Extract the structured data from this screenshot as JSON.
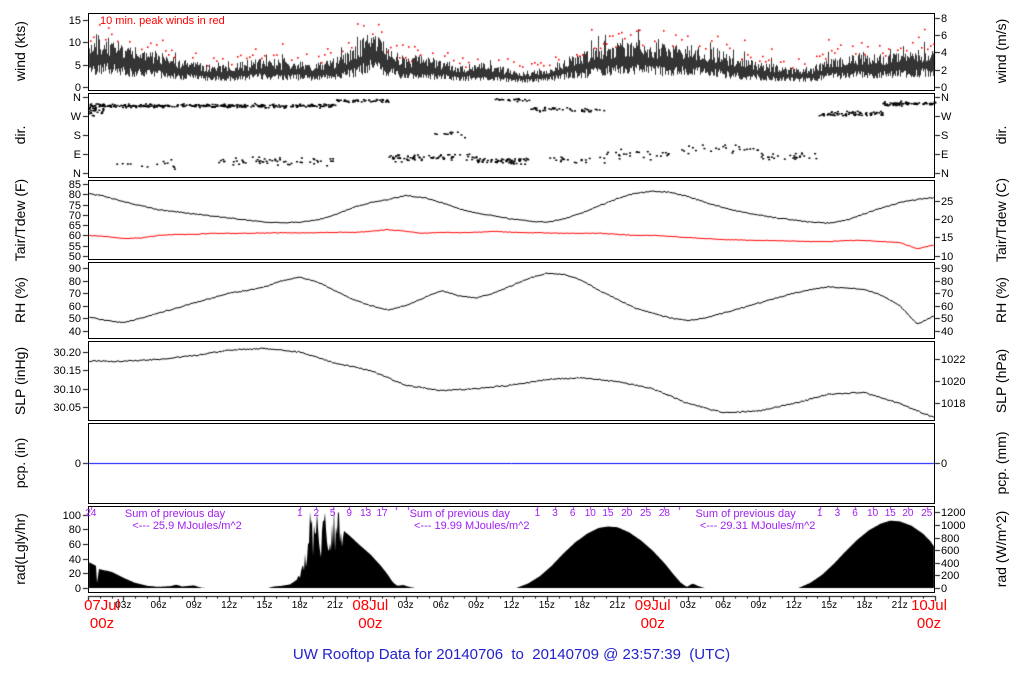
{
  "title": {
    "text": "UW Rooftop Data for 20140706  to  20140709 @ 23:57:39  (UTC)"
  },
  "colors": {
    "series_black": "#000000",
    "series_red": "#ff0000",
    "precip_blue": "#0000ff",
    "annotation_purple": "#a020f0",
    "date_red": "#ff0000",
    "title_blue": "#2222cc"
  },
  "time_axis": {
    "hours_span": 72,
    "major_ticks": [
      {
        "hour": 0,
        "date": "07Jul",
        "z": "00z"
      },
      {
        "hour": 24,
        "date": "08Jul",
        "z": "00z"
      },
      {
        "hour": 48,
        "date": "09Jul",
        "z": "00z"
      },
      {
        "hour": 72,
        "date": "10Jul",
        "z": "00z"
      }
    ],
    "minor_labels": [
      "03z",
      "06z",
      "09z",
      "12z",
      "15z",
      "18z",
      "21z"
    ]
  },
  "chart_data": [
    {
      "id": "wind",
      "type": "line",
      "ylabel_left": "wind (kts)",
      "ylabel_right": "wind (m/s)",
      "ylim": [
        -0.7,
        16.6
      ],
      "yticks_left": {
        "values": [
          0,
          5,
          10,
          15
        ],
        "labels": [
          "0",
          "5",
          "10",
          "15"
        ]
      },
      "yticks_right": {
        "labels": [
          "0",
          "2",
          "4",
          "6",
          "8"
        ],
        "left_values": [
          0,
          3.888,
          7.776,
          11.663,
          15.551
        ]
      },
      "annotation": "10 min. peak winds in red",
      "series": [
        {
          "name": "wind average (kts)",
          "color": "#000000",
          "x_step_hours": 1.5,
          "values": [
            7.5,
            8,
            6.5,
            6,
            5.5,
            4.5,
            4,
            3.5,
            3.5,
            4,
            4.5,
            4.2,
            4,
            3.8,
            4.5,
            6,
            9,
            6.5,
            4.5,
            5,
            4.2,
            3.2,
            4,
            3.5,
            2.8,
            2.5,
            3,
            4.5,
            5.5,
            6.5,
            7,
            7.5,
            7,
            6.5,
            6.8,
            6.2,
            5.5,
            4.5,
            4,
            3.5,
            3,
            3.2,
            4.5,
            5,
            5.5,
            5,
            5.5,
            6,
            6
          ]
        },
        {
          "name": "10 min. peak winds (kts)",
          "color": "#ff0000",
          "style": "dots-above"
        }
      ]
    },
    {
      "id": "dir",
      "type": "scatter",
      "ylabel_left": "dir.",
      "ylabel_right": "dir.",
      "ylim": [
        -20,
        380
      ],
      "yticks_left": {
        "values": [
          360,
          270,
          180,
          90,
          0
        ],
        "labels": [
          "N",
          "W",
          "S",
          "E",
          "N"
        ]
      },
      "yticks_right": {
        "labels": [
          "N",
          "W",
          "S",
          "E",
          "N"
        ],
        "left_values": [
          360,
          270,
          180,
          90,
          0
        ]
      },
      "scatter_segments": [
        {
          "h0": 0,
          "h1": 1.5,
          "dir": 300,
          "spread": 35,
          "n": 30
        },
        {
          "h0": 0,
          "h1": 21,
          "dir": 322,
          "spread": 13,
          "n": 320
        },
        {
          "h0": 2,
          "h1": 8,
          "dir": 40,
          "spread": 28,
          "n": 14
        },
        {
          "h0": 11,
          "h1": 21,
          "dir": 60,
          "spread": 28,
          "n": 55
        },
        {
          "h0": 21,
          "h1": 25.5,
          "dir": 345,
          "spread": 12,
          "n": 45
        },
        {
          "h0": 25.5,
          "h1": 33,
          "dir": 75,
          "spread": 25,
          "n": 70
        },
        {
          "h0": 29,
          "h1": 32,
          "dir": 190,
          "spread": 25,
          "n": 12
        },
        {
          "h0": 33,
          "h1": 37.5,
          "dir": 60,
          "spread": 20,
          "n": 65
        },
        {
          "h0": 34.5,
          "h1": 37.5,
          "dir": 350,
          "spread": 9,
          "n": 22
        },
        {
          "h0": 37.5,
          "h1": 44,
          "dir": 305,
          "spread": 17,
          "n": 45
        },
        {
          "h0": 39,
          "h1": 44,
          "dir": 65,
          "spread": 22,
          "n": 20
        },
        {
          "h0": 44,
          "h1": 51,
          "dir": 95,
          "spread": 35,
          "n": 28
        },
        {
          "h0": 51,
          "h1": 57,
          "dir": 120,
          "spread": 40,
          "n": 22
        },
        {
          "h0": 57,
          "h1": 62,
          "dir": 80,
          "spread": 22,
          "n": 28
        },
        {
          "h0": 62,
          "h1": 67.5,
          "dir": 285,
          "spread": 16,
          "n": 70
        },
        {
          "h0": 67.5,
          "h1": 72,
          "dir": 332,
          "spread": 13,
          "n": 75
        }
      ]
    },
    {
      "id": "temp",
      "type": "line",
      "ylabel_left": "Tair/Tdew (F)",
      "ylabel_right": "Tair/Tdew (C)",
      "ylim": [
        48.5,
        87
      ],
      "yticks_left": {
        "values": [
          50,
          55,
          60,
          65,
          70,
          75,
          80,
          85
        ],
        "labels": [
          "50",
          "55",
          "60",
          "65",
          "70",
          "75",
          "80",
          "85"
        ]
      },
      "yticks_right": {
        "labels": [
          "10",
          "15",
          "20",
          "25"
        ],
        "left_values": [
          50,
          59,
          68,
          77
        ]
      },
      "series": [
        {
          "name": "Tair (F)",
          "color": "#000000",
          "x_step_hours": 1.5,
          "values": [
            80.5,
            79,
            76.5,
            74.5,
            72.5,
            71.5,
            70.5,
            69.5,
            68.5,
            67.5,
            66.5,
            66.2,
            66.5,
            67.5,
            70,
            73.5,
            76,
            77.5,
            79.5,
            78.5,
            76,
            73,
            71,
            69.5,
            68,
            67,
            66.5,
            68,
            71,
            74.5,
            78,
            80.5,
            81.5,
            81,
            79,
            76,
            73.5,
            71.5,
            70,
            68.5,
            67.5,
            66.5,
            66,
            67.5,
            70.5,
            73.5,
            76,
            77.5,
            78.5
          ]
        },
        {
          "name": "Tdew (F)",
          "color": "#ff0000",
          "x_step_hours": 1.5,
          "values": [
            60,
            59.5,
            58.5,
            58.8,
            60,
            60.5,
            60.5,
            61,
            61,
            61,
            61.2,
            61.3,
            61.2,
            61.3,
            61.5,
            61.5,
            62,
            62.8,
            62,
            61,
            61.5,
            61.3,
            61.5,
            62,
            61.5,
            61.3,
            61.2,
            61,
            61,
            61,
            60.5,
            60,
            60,
            59.5,
            59,
            58.5,
            58,
            57.8,
            57.5,
            57.5,
            57.2,
            57,
            57,
            57.5,
            57.5,
            57,
            56.5,
            53.5,
            55.5
          ]
        }
      ]
    },
    {
      "id": "rh",
      "type": "line",
      "ylabel_left": "RH (%)",
      "ylabel_right": "RH (%)",
      "ylim": [
        34,
        95
      ],
      "yticks_left": {
        "values": [
          40,
          50,
          60,
          70,
          80,
          90
        ],
        "labels": [
          "40",
          "50",
          "60",
          "70",
          "80",
          "90"
        ]
      },
      "yticks_right": {
        "labels": [
          "40",
          "50",
          "60",
          "70",
          "80",
          "90"
        ],
        "left_values": [
          40,
          50,
          60,
          70,
          80,
          90
        ]
      },
      "series": [
        {
          "name": "relative humidity (%)",
          "color": "#000000",
          "x_step_hours": 1.5,
          "values": [
            51,
            48,
            46.5,
            50,
            54,
            58,
            62,
            66,
            70,
            72,
            75,
            80,
            83,
            79,
            72,
            65,
            60,
            56.5,
            60,
            66,
            72,
            68,
            66,
            70,
            76,
            82,
            86,
            85,
            80,
            72,
            65,
            58,
            54,
            50,
            48,
            50,
            54,
            58,
            62,
            66,
            70,
            73,
            75,
            74,
            73,
            68,
            60,
            45,
            52
          ]
        }
      ]
    },
    {
      "id": "slp",
      "type": "line",
      "ylabel_left": "SLP (inHg)",
      "ylabel_right": "SLP (hPa)",
      "ylim": [
        30.015,
        30.23
      ],
      "yticks_left": {
        "values": [
          30.05,
          30.1,
          30.15,
          30.2
        ],
        "labels": [
          "30.05",
          "30.10",
          "30.15",
          "30.20"
        ]
      },
      "yticks_right": {
        "labels": [
          "1018",
          "1020",
          "1022"
        ],
        "left_values": [
          30.062,
          30.121,
          30.18
        ]
      },
      "series": [
        {
          "name": "sea level pressure (inHg)",
          "color": "#000000",
          "x_step_hours": 3,
          "values": [
            30.175,
            30.175,
            30.18,
            30.19,
            30.205,
            30.21,
            30.2,
            30.17,
            30.15,
            30.11,
            30.095,
            30.1,
            30.11,
            30.125,
            30.13,
            30.12,
            30.1,
            30.06,
            30.035,
            30.04,
            30.06,
            30.085,
            30.09,
            30.06,
            30.02
          ]
        }
      ]
    },
    {
      "id": "pcp",
      "type": "line",
      "ylabel_left": "pcp. (in)",
      "ylabel_right": "pcp. (mm)",
      "ylim": [
        -1,
        1
      ],
      "yticks_left": {
        "values": [
          0
        ],
        "labels": [
          "0"
        ]
      },
      "yticks_right": {
        "labels": [
          "0"
        ],
        "left_values": [
          0
        ]
      },
      "series": [
        {
          "name": "precipitation (in)",
          "color": "#0000ff",
          "constant": 0
        }
      ]
    },
    {
      "id": "rad",
      "type": "area",
      "ylabel_left": "rad(Lgly/hr)",
      "ylabel_right": "rad (W/m^2)",
      "ylim": [
        -5.5,
        112
      ],
      "yticks_left": {
        "values": [
          0,
          20,
          40,
          60,
          80,
          100
        ],
        "labels": [
          "0",
          "20",
          "40",
          "60",
          "80",
          "100"
        ]
      },
      "yticks_right": {
        "labels": [
          "0",
          "200",
          "400",
          "600",
          "800",
          "1000",
          "1200"
        ],
        "left_values": [
          0,
          17.2,
          34.4,
          51.6,
          68.8,
          86.0,
          103.2
        ]
      },
      "fill_series": {
        "name": "solar radiation (Lgly/hr)",
        "color": "#000000",
        "spiky_range": [
          17.8,
          21.7
        ],
        "breakpoints": [
          [
            0,
            36
          ],
          [
            0.7,
            30
          ],
          [
            0.78,
            2
          ],
          [
            0.9,
            26
          ],
          [
            2,
            22
          ],
          [
            3,
            14
          ],
          [
            4,
            7
          ],
          [
            5,
            3
          ],
          [
            6,
            1.5
          ],
          [
            7,
            2.5
          ],
          [
            7.5,
            4.5
          ],
          [
            8,
            2
          ],
          [
            9,
            3.5
          ],
          [
            9.6,
            0.5
          ],
          [
            10,
            0
          ],
          [
            15.3,
            0
          ],
          [
            15.8,
            2
          ],
          [
            16.5,
            3
          ],
          [
            17.2,
            5
          ],
          [
            17.8,
            12
          ],
          [
            18.3,
            35
          ],
          [
            18.8,
            70
          ],
          [
            19.2,
            95
          ],
          [
            19.6,
            75
          ],
          [
            20,
            98
          ],
          [
            20.4,
            85
          ],
          [
            20.8,
            96
          ],
          [
            21.2,
            88
          ],
          [
            21.6,
            80
          ],
          [
            22.2,
            72
          ],
          [
            23,
            60
          ],
          [
            24,
            46
          ],
          [
            24.8,
            32
          ],
          [
            25.4,
            20
          ],
          [
            25.9,
            8
          ],
          [
            26.3,
            3
          ],
          [
            26.8,
            4
          ],
          [
            27.3,
            1.5
          ],
          [
            27.8,
            0
          ],
          [
            36.4,
            0
          ],
          [
            37.4,
            6
          ],
          [
            38.4,
            16
          ],
          [
            39.4,
            30
          ],
          [
            40.4,
            47
          ],
          [
            41.4,
            62
          ],
          [
            42.4,
            74
          ],
          [
            43.4,
            82
          ],
          [
            44.2,
            84
          ],
          [
            45,
            83
          ],
          [
            46,
            76
          ],
          [
            47,
            65
          ],
          [
            48,
            51
          ],
          [
            49,
            34
          ],
          [
            49.8,
            18
          ],
          [
            50.4,
            7
          ],
          [
            50.9,
            1.5
          ],
          [
            51.4,
            6
          ],
          [
            51.9,
            2.5
          ],
          [
            52.4,
            0
          ],
          [
            60.4,
            0
          ],
          [
            61.4,
            7
          ],
          [
            62.4,
            18
          ],
          [
            63.4,
            33
          ],
          [
            64.4,
            50
          ],
          [
            65.4,
            66
          ],
          [
            66.4,
            79
          ],
          [
            67.4,
            88
          ],
          [
            68.2,
            92
          ],
          [
            69,
            91
          ],
          [
            70,
            85
          ],
          [
            71,
            74
          ],
          [
            71.6,
            64
          ],
          [
            72,
            55
          ]
        ]
      },
      "sum_annotations": [
        {
          "center_hour": 7.4,
          "line1": "Sum of previous day",
          "line2": "<--- 25.9 MJoules/m^2"
        },
        {
          "center_hour": 31.6,
          "line1": "Sum of previous day",
          "line2": "<--- 19.99 MJoules/m^2"
        },
        {
          "center_hour": 55.9,
          "line1": "Sum of previous day",
          "line2": "<--- 29.31 MJoules/m^2"
        }
      ],
      "cum_ticks": [
        {
          "hour": 0.25,
          "label": "24"
        },
        {
          "hour": 18.0,
          "label": "1"
        },
        {
          "hour": 19.4,
          "label": "2"
        },
        {
          "hour": 20.8,
          "label": "5"
        },
        {
          "hour": 22.2,
          "label": "9"
        },
        {
          "hour": 23.6,
          "label": "13"
        },
        {
          "hour": 25.0,
          "label": "17"
        },
        {
          "hour": 26.2,
          "label": ""
        },
        {
          "hour": 27.2,
          "label": ""
        },
        {
          "hour": 38.2,
          "label": "1"
        },
        {
          "hour": 39.7,
          "label": "3"
        },
        {
          "hour": 41.2,
          "label": "6"
        },
        {
          "hour": 42.7,
          "label": "10"
        },
        {
          "hour": 44.2,
          "label": "15"
        },
        {
          "hour": 45.8,
          "label": "20"
        },
        {
          "hour": 47.4,
          "label": "25"
        },
        {
          "hour": 49.0,
          "label": "28"
        },
        {
          "hour": 50.2,
          "label": ""
        },
        {
          "hour": 62.2,
          "label": "1"
        },
        {
          "hour": 63.7,
          "label": "3"
        },
        {
          "hour": 65.2,
          "label": "6"
        },
        {
          "hour": 66.7,
          "label": "10"
        },
        {
          "hour": 68.2,
          "label": "15"
        },
        {
          "hour": 69.7,
          "label": "20"
        },
        {
          "hour": 71.3,
          "label": "25"
        }
      ]
    }
  ]
}
